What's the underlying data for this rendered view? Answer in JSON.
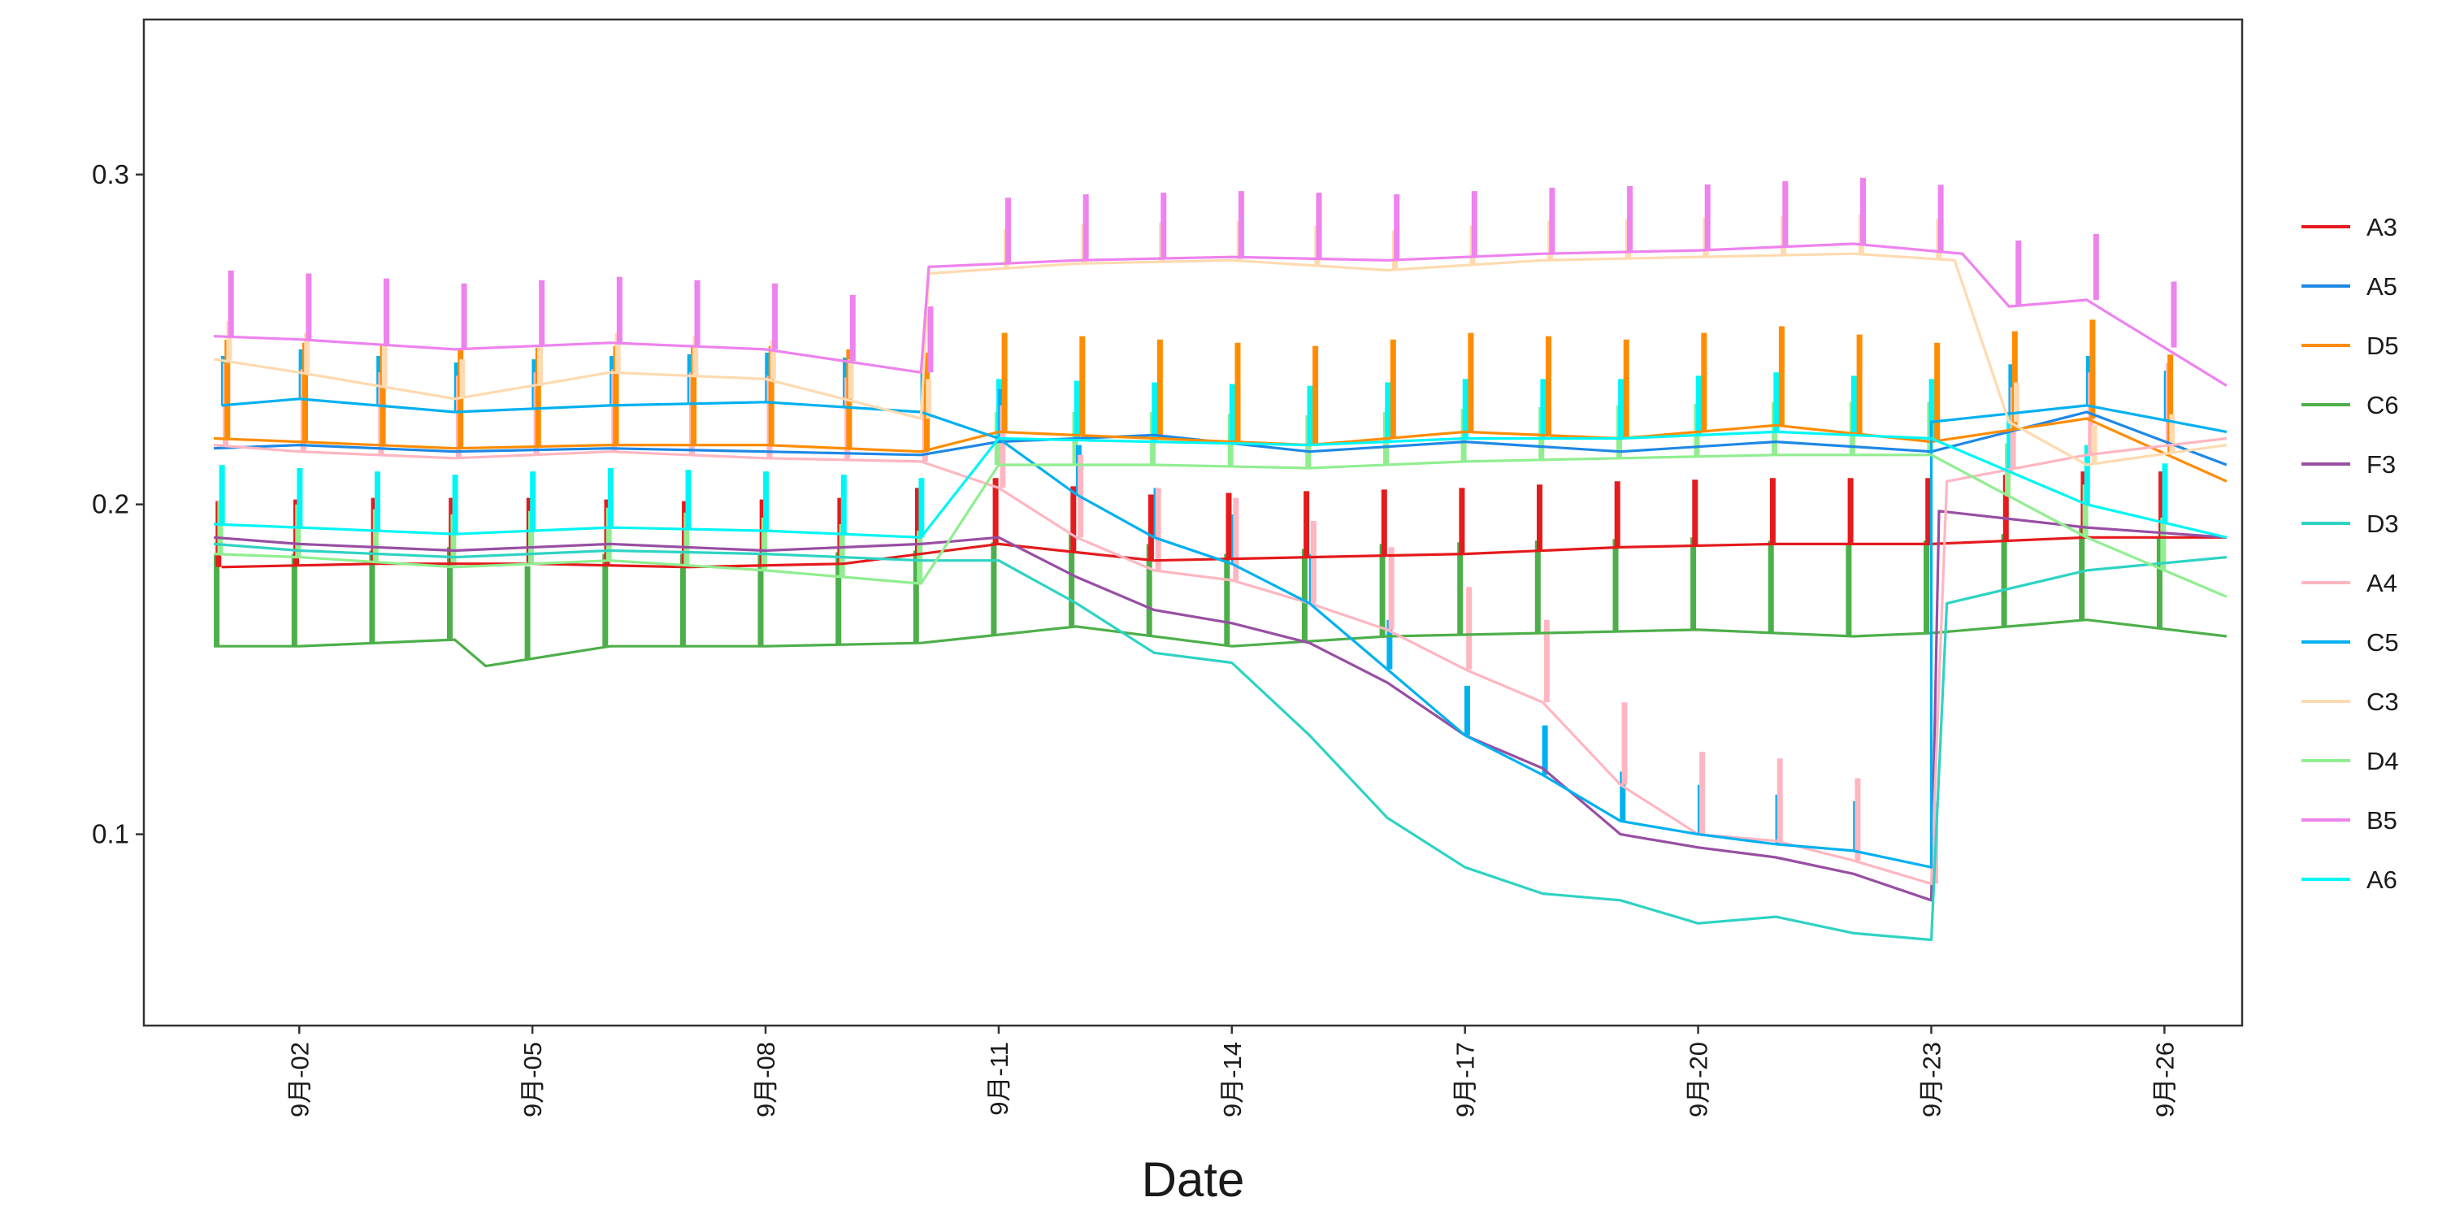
{
  "chart_data": {
    "type": "line",
    "title": "",
    "xlabel": "Date",
    "ylabel": "",
    "x_range": [
      "2024-08-31",
      "2024-09-27"
    ],
    "ylim": [
      0.042,
      0.347
    ],
    "yticks": [
      0.1,
      0.2,
      0.3
    ],
    "ytick_labels": [
      "0.1",
      "0.2",
      "0.3"
    ],
    "x_ticks": [
      "2024-09-02",
      "2024-09-05",
      "2024-09-08",
      "2024-09-11",
      "2024-09-14",
      "2024-09-17",
      "2024-09-20",
      "2024-09-23",
      "2024-09-26"
    ],
    "x_tick_labels": [
      "9月-02",
      "9月-05",
      "9月-08",
      "9月-11",
      "9月-14",
      "9月-17",
      "9月-20",
      "9月-23",
      "9月-26"
    ],
    "grid": false,
    "legend_position": "right",
    "series": [
      {
        "name": "A3",
        "color": "#E41A1C",
        "x": [
          "2024-09-01",
          "2024-09-03",
          "2024-09-05",
          "2024-09-07",
          "2024-09-09",
          "2024-09-11",
          "2024-09-13",
          "2024-09-15",
          "2024-09-17",
          "2024-09-19",
          "2024-09-21",
          "2024-09-23",
          "2024-09-25",
          "2024-09-26.8"
        ],
        "y": [
          0.181,
          0.182,
          0.182,
          0.181,
          0.182,
          0.188,
          0.183,
          0.184,
          0.185,
          0.187,
          0.188,
          0.188,
          0.19,
          0.19
        ]
      },
      {
        "name": "A5",
        "color": "#1E88E5",
        "x": [
          "2024-08-31.9",
          "2024-09-02",
          "2024-09-04",
          "2024-09-06",
          "2024-09-08",
          "2024-09-10",
          "2024-09-11",
          "2024-09-13",
          "2024-09-15",
          "2024-09-17",
          "2024-09-19",
          "2024-09-21",
          "2024-09-23",
          "2024-09-25",
          "2024-09-26.8"
        ],
        "y": [
          0.217,
          0.218,
          0.216,
          0.217,
          0.216,
          0.215,
          0.219,
          0.221,
          0.216,
          0.219,
          0.216,
          0.219,
          0.216,
          0.228,
          0.212
        ]
      },
      {
        "name": "D5",
        "color": "#FF8C00",
        "x": [
          "2024-08-31.9",
          "2024-09-02",
          "2024-09-04",
          "2024-09-06",
          "2024-09-08",
          "2024-09-10",
          "2024-09-11",
          "2024-09-13",
          "2024-09-15",
          "2024-09-17",
          "2024-09-19",
          "2024-09-21",
          "2024-09-23",
          "2024-09-25",
          "2024-09-26.8"
        ],
        "y": [
          0.22,
          0.219,
          0.217,
          0.218,
          0.218,
          0.216,
          0.222,
          0.22,
          0.218,
          0.222,
          0.22,
          0.224,
          0.219,
          0.226,
          0.207
        ]
      },
      {
        "name": "C6",
        "color": "#4DAF4A",
        "x": [
          "2024-08-31.9",
          "2024-09-02",
          "2024-09-04",
          "2024-09-04.4",
          "2024-09-06",
          "2024-09-08",
          "2024-09-10",
          "2024-09-12",
          "2024-09-14",
          "2024-09-16",
          "2024-09-18",
          "2024-09-20",
          "2024-09-22",
          "2024-09-23",
          "2024-09-25",
          "2024-09-26.8"
        ],
        "y": [
          0.157,
          0.157,
          0.159,
          0.151,
          0.157,
          0.157,
          0.158,
          0.163,
          0.157,
          0.16,
          0.161,
          0.162,
          0.16,
          0.161,
          0.165,
          0.16
        ]
      },
      {
        "name": "F3",
        "color": "#984EA3",
        "x": [
          "2024-08-31.9",
          "2024-09-02",
          "2024-09-04",
          "2024-09-06",
          "2024-09-08",
          "2024-09-10",
          "2024-09-11",
          "2024-09-12",
          "2024-09-13",
          "2024-09-14",
          "2024-09-15",
          "2024-09-16",
          "2024-09-17",
          "2024-09-18",
          "2024-09-19",
          "2024-09-20",
          "2024-09-21",
          "2024-09-22",
          "2024-09-23",
          "2024-09-23.1",
          "2024-09-25",
          "2024-09-26.8"
        ],
        "y": [
          0.19,
          0.188,
          0.186,
          0.188,
          0.186,
          0.188,
          0.19,
          0.178,
          0.168,
          0.164,
          0.158,
          0.146,
          0.13,
          0.12,
          0.1,
          0.096,
          0.093,
          0.088,
          0.08,
          0.198,
          0.193,
          0.19
        ]
      },
      {
        "name": "D3",
        "color": "#2ED3C3",
        "x": [
          "2024-08-31.9",
          "2024-09-02",
          "2024-09-04",
          "2024-09-06",
          "2024-09-08",
          "2024-09-10",
          "2024-09-11",
          "2024-09-12",
          "2024-09-13",
          "2024-09-14",
          "2024-09-15",
          "2024-09-16",
          "2024-09-17",
          "2024-09-18",
          "2024-09-19",
          "2024-09-20",
          "2024-09-21",
          "2024-09-22",
          "2024-09-23",
          "2024-09-23.2",
          "2024-09-25",
          "2024-09-26.8"
        ],
        "y": [
          0.188,
          0.186,
          0.184,
          0.186,
          0.185,
          0.183,
          0.183,
          0.17,
          0.155,
          0.152,
          0.13,
          0.105,
          0.09,
          0.082,
          0.08,
          0.073,
          0.075,
          0.07,
          0.068,
          0.17,
          0.18,
          0.184
        ]
      },
      {
        "name": "A4",
        "color": "#FFB6C1",
        "x": [
          "2024-08-31.9",
          "2024-09-02",
          "2024-09-04",
          "2024-09-06",
          "2024-09-08",
          "2024-09-10",
          "2024-09-11",
          "2024-09-12",
          "2024-09-13",
          "2024-09-14",
          "2024-09-15",
          "2024-09-16",
          "2024-09-17",
          "2024-09-18",
          "2024-09-19",
          "2024-09-20",
          "2024-09-21",
          "2024-09-22",
          "2024-09-23",
          "2024-09-23.2",
          "2024-09-25",
          "2024-09-26.8"
        ],
        "y": [
          0.218,
          0.216,
          0.214,
          0.216,
          0.214,
          0.213,
          0.205,
          0.19,
          0.18,
          0.177,
          0.17,
          0.162,
          0.15,
          0.14,
          0.115,
          0.1,
          0.098,
          0.092,
          0.085,
          0.207,
          0.215,
          0.22
        ]
      },
      {
        "name": "C5",
        "color": "#00B0F0",
        "x": [
          "2024-09-01",
          "2024-09-02",
          "2024-09-04",
          "2024-09-06",
          "2024-09-08",
          "2024-09-10",
          "2024-09-11",
          "2024-09-12",
          "2024-09-13",
          "2024-09-14",
          "2024-09-15",
          "2024-09-16",
          "2024-09-17",
          "2024-09-18",
          "2024-09-19",
          "2024-09-20",
          "2024-09-21",
          "2024-09-22",
          "2024-09-23",
          "2024-09-23",
          "2024-09-25",
          "2024-09-26.8"
        ],
        "y": [
          0.23,
          0.232,
          0.228,
          0.23,
          0.231,
          0.228,
          0.22,
          0.203,
          0.19,
          0.182,
          0.17,
          0.15,
          0.13,
          0.118,
          0.104,
          0.1,
          0.097,
          0.095,
          0.09,
          0.225,
          0.23,
          0.222
        ]
      },
      {
        "name": "C3",
        "color": "#FFDAB0",
        "x": [
          "2024-08-31.9",
          "2024-09-02",
          "2024-09-04",
          "2024-09-06",
          "2024-09-08",
          "2024-09-10",
          "2024-09-10.1",
          "2024-09-12",
          "2024-09-14",
          "2024-09-16",
          "2024-09-18",
          "2024-09-20",
          "2024-09-22",
          "2024-09-23.3",
          "2024-09-24",
          "2024-09-25",
          "2024-09-26.8"
        ],
        "y": [
          0.244,
          0.24,
          0.232,
          0.24,
          0.238,
          0.226,
          0.27,
          0.273,
          0.274,
          0.271,
          0.274,
          0.275,
          0.276,
          0.274,
          0.225,
          0.212,
          0.218
        ]
      },
      {
        "name": "D4",
        "color": "#90EE90",
        "x": [
          "2024-08-31.9",
          "2024-09-02",
          "2024-09-04",
          "2024-09-06",
          "2024-09-08",
          "2024-09-10",
          "2024-09-11",
          "2024-09-13",
          "2024-09-15",
          "2024-09-17",
          "2024-09-19",
          "2024-09-21",
          "2024-09-23",
          "2024-09-25",
          "2024-09-26.8"
        ],
        "y": [
          0.185,
          0.184,
          0.181,
          0.183,
          0.18,
          0.176,
          0.212,
          0.212,
          0.211,
          0.213,
          0.214,
          0.215,
          0.215,
          0.19,
          0.172
        ]
      },
      {
        "name": "B5",
        "color": "#EE82EE",
        "x": [
          "2024-08-31.9",
          "2024-09-02",
          "2024-09-04",
          "2024-09-06",
          "2024-09-08",
          "2024-09-10",
          "2024-09-10.1",
          "2024-09-12",
          "2024-09-14",
          "2024-09-16",
          "2024-09-18",
          "2024-09-20",
          "2024-09-22",
          "2024-09-23.4",
          "2024-09-24",
          "2024-09-25",
          "2024-09-26.8"
        ],
        "y": [
          0.251,
          0.25,
          0.247,
          0.249,
          0.247,
          0.24,
          0.272,
          0.274,
          0.275,
          0.274,
          0.276,
          0.277,
          0.279,
          0.276,
          0.26,
          0.262,
          0.236
        ]
      },
      {
        "name": "A6",
        "color": "#00F5F5",
        "x": [
          "2024-08-31.9",
          "2024-09-02",
          "2024-09-04",
          "2024-09-06",
          "2024-09-08",
          "2024-09-10",
          "2024-09-11",
          "2024-09-13",
          "2024-09-15",
          "2024-09-17",
          "2024-09-19",
          "2024-09-21",
          "2024-09-23",
          "2024-09-25",
          "2024-09-26.8"
        ],
        "y": [
          0.194,
          0.193,
          0.191,
          0.193,
          0.192,
          0.19,
          0.22,
          0.219,
          0.218,
          0.22,
          0.22,
          0.222,
          0.22,
          0.2,
          0.19
        ]
      }
    ]
  }
}
